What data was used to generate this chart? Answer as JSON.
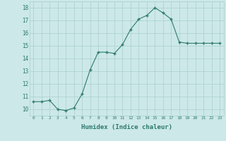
{
  "x": [
    0,
    1,
    2,
    3,
    4,
    5,
    6,
    7,
    8,
    9,
    10,
    11,
    12,
    13,
    14,
    15,
    16,
    17,
    18,
    19,
    20,
    21,
    22,
    23
  ],
  "y": [
    10.6,
    10.6,
    10.7,
    10.0,
    9.9,
    10.1,
    11.2,
    13.1,
    14.5,
    14.5,
    14.4,
    15.1,
    16.3,
    17.1,
    17.4,
    18.0,
    17.6,
    17.1,
    15.3,
    15.2,
    15.2,
    15.2,
    15.2,
    15.2
  ],
  "xlabel": "Humidex (Indice chaleur)",
  "ylim": [
    9.5,
    18.5
  ],
  "xlim": [
    -0.5,
    23.5
  ],
  "yticks": [
    10,
    11,
    12,
    13,
    14,
    15,
    16,
    17,
    18
  ],
  "xticks": [
    0,
    1,
    2,
    3,
    4,
    5,
    6,
    7,
    8,
    9,
    10,
    11,
    12,
    13,
    14,
    15,
    16,
    17,
    18,
    19,
    20,
    21,
    22,
    23
  ],
  "xtick_labels": [
    "0",
    "1",
    "2",
    "3",
    "4",
    "5",
    "6",
    "7",
    "8",
    "9",
    "10",
    "11",
    "12",
    "13",
    "14",
    "15",
    "16",
    "17",
    "18",
    "19",
    "20",
    "21",
    "22",
    "23"
  ],
  "line_color": "#2d7a6e",
  "marker": "+",
  "marker_size": 3.5,
  "bg_color": "#cce8e8",
  "grid_color": "#aacfcf",
  "xlabel_color": "#2d7a6e"
}
